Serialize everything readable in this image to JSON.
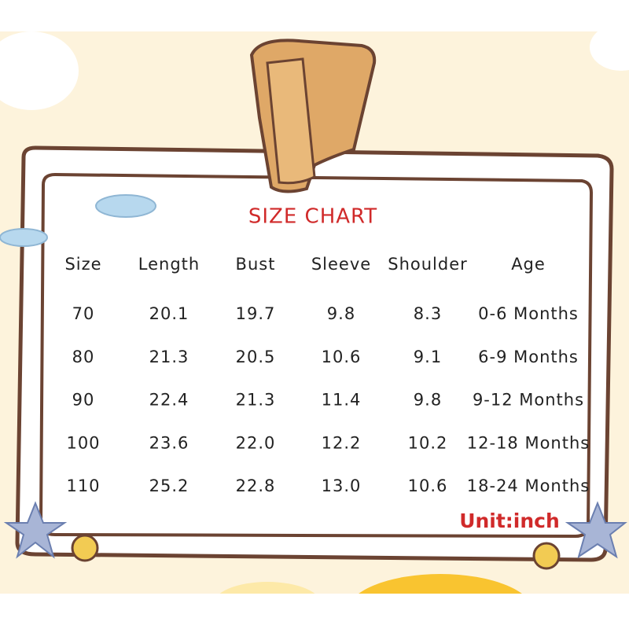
{
  "header": {
    "title": "SIZE CHART"
  },
  "table": {
    "columns": [
      "Size",
      "Length",
      "Bust",
      "Sleeve",
      "Shoulder",
      "Age"
    ],
    "rows": [
      [
        "70",
        "20.1",
        "19.7",
        "9.8",
        "8.3",
        "0-6 Months"
      ],
      [
        "80",
        "21.3",
        "20.5",
        "10.6",
        "9.1",
        "6-9 Months"
      ],
      [
        "90",
        "22.4",
        "21.3",
        "11.4",
        "9.8",
        "9-12 Months"
      ],
      [
        "100",
        "23.6",
        "22.0",
        "12.2",
        "10.2",
        "12-18 Months"
      ],
      [
        "110",
        "25.2",
        "22.8",
        "13.0",
        "10.6",
        "18-24 Months"
      ]
    ]
  },
  "footer": {
    "unit": "Unit:inch"
  }
}
